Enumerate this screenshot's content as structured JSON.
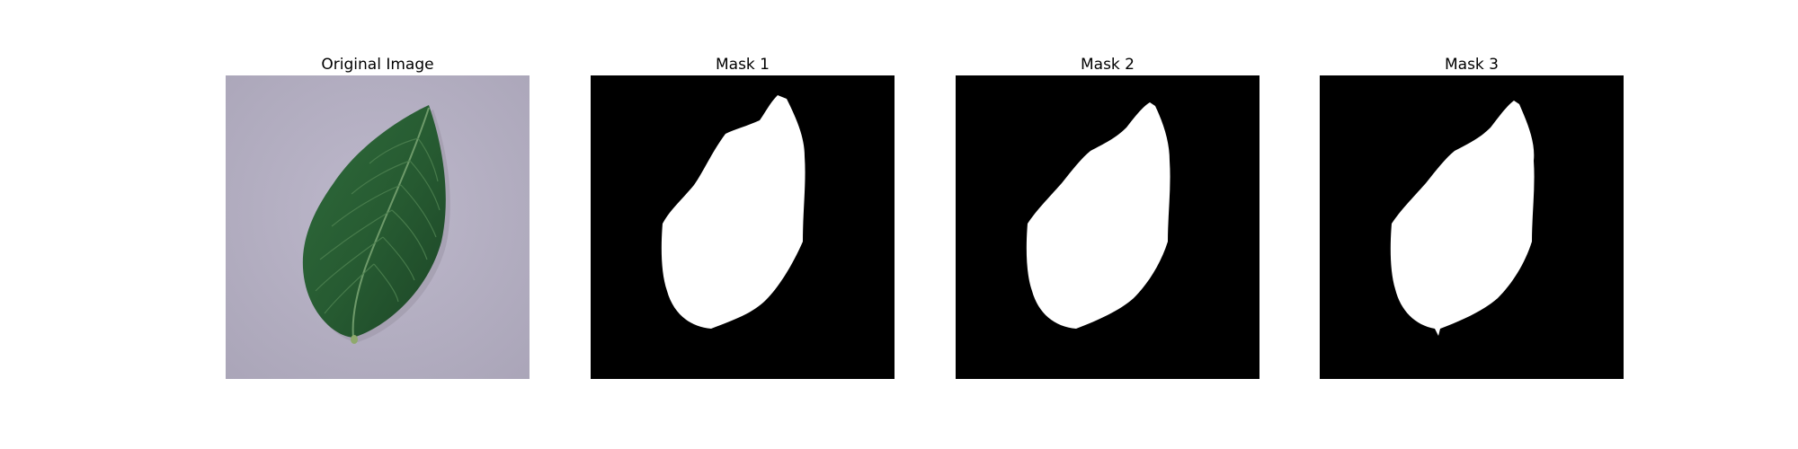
{
  "figure": {
    "panels": [
      {
        "title": "Original Image",
        "kind": "photo",
        "depicts": "leaf"
      },
      {
        "title": "Mask 1",
        "kind": "mask"
      },
      {
        "title": "Mask 2",
        "kind": "mask"
      },
      {
        "title": "Mask 3",
        "kind": "mask"
      }
    ],
    "colors": {
      "background_surface": "#b8b3c6",
      "leaf_dark": "#1f4a2a",
      "leaf_mid": "#2e6a3a",
      "leaf_light": "#4f8a55",
      "mask_background": "#000000",
      "mask_foreground": "#ffffff"
    }
  }
}
